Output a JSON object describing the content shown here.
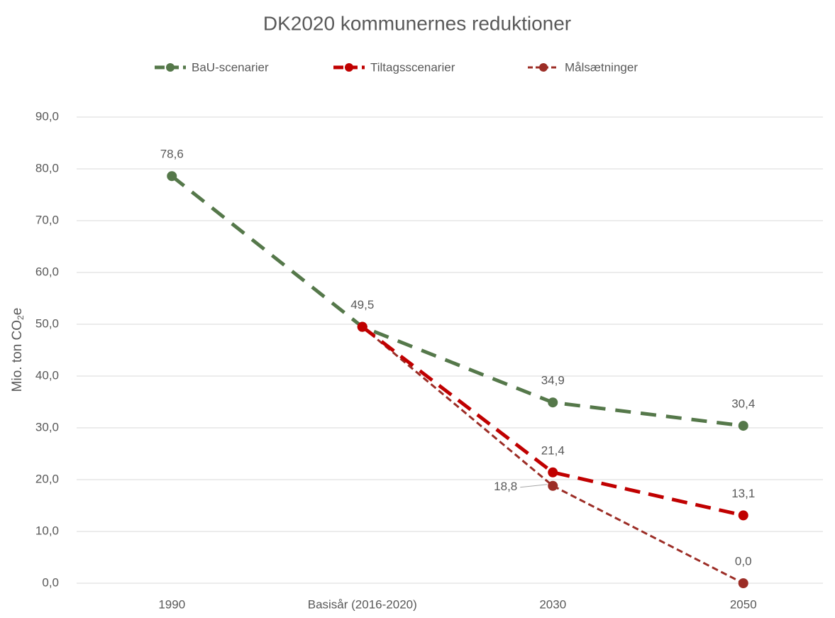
{
  "chart_data": {
    "type": "line",
    "title": "DK2020 kommunernes reduktioner",
    "y_label": [
      "Mio. ton CO",
      "2",
      "e"
    ],
    "categories": [
      "1990",
      "Basisår (2016-2020)",
      "2030",
      "2050"
    ],
    "series": [
      {
        "name": "BaU-scenarier",
        "color": "#55784a",
        "values": [
          78.6,
          49.5,
          34.9,
          30.4
        ],
        "value_labels": [
          "78,6",
          "49,5",
          "34,9",
          "30,4"
        ]
      },
      {
        "name": "Tiltagsscenarier",
        "color": "#c00000",
        "values": [
          null,
          49.5,
          21.4,
          13.1
        ],
        "value_labels": [
          null,
          null,
          "21,4",
          "13,1"
        ]
      },
      {
        "name": "Målsætninger",
        "color": "#9c2d26",
        "values": [
          null,
          49.5,
          18.8,
          0.0
        ],
        "value_labels": [
          null,
          null,
          "18,8",
          "0,0"
        ]
      }
    ],
    "ylim": [
      0,
      90
    ],
    "yticks": [
      {
        "value": 0,
        "label": "0,0"
      },
      {
        "value": 10,
        "label": "10,0"
      },
      {
        "value": 20,
        "label": "20,0"
      },
      {
        "value": 30,
        "label": "30,0"
      },
      {
        "value": 40,
        "label": "40,0"
      },
      {
        "value": 50,
        "label": "50,0"
      },
      {
        "value": 60,
        "label": "60,0"
      },
      {
        "value": 70,
        "label": "70,0"
      },
      {
        "value": 80,
        "label": "80,0"
      },
      {
        "value": 90,
        "label": "90,0"
      }
    ],
    "grid": true,
    "legend": "top"
  }
}
